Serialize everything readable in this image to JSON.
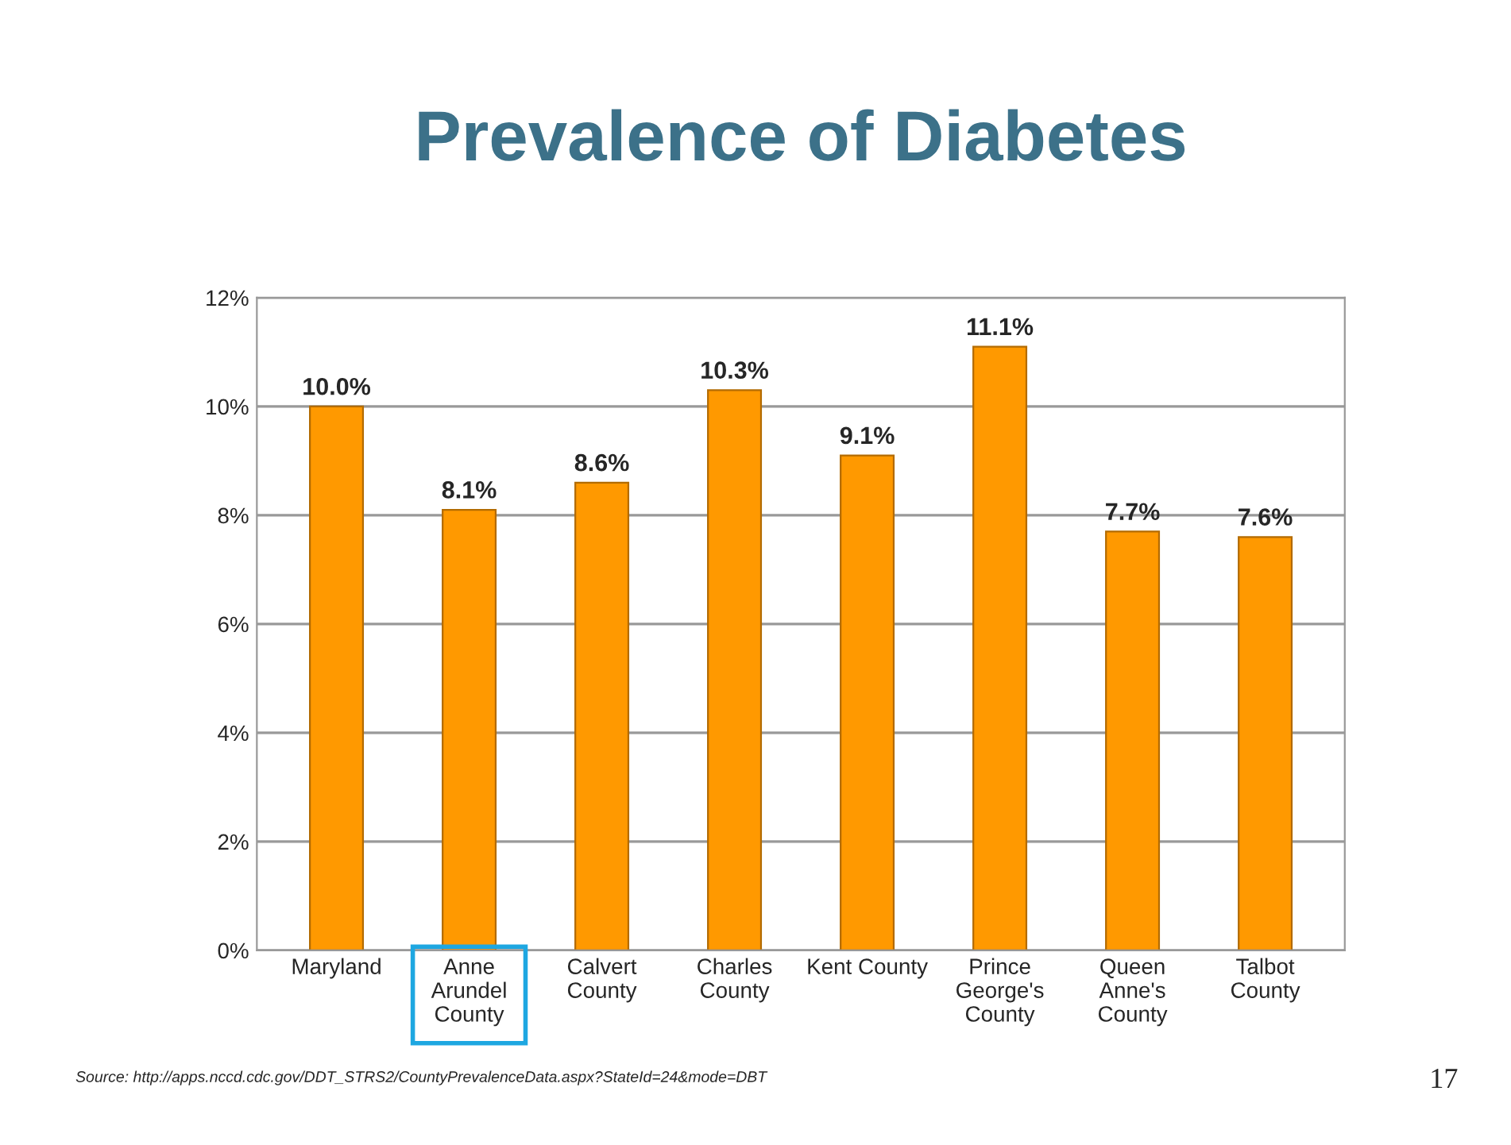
{
  "chart_data": {
    "type": "bar",
    "title": "Prevalence of Diabetes",
    "categories": [
      "Maryland",
      "Anne\nArundel\nCounty",
      "Calvert\nCounty",
      "Charles\nCounty",
      "Kent County",
      "Prince\nGeorge's\nCounty",
      "Queen\nAnne's\nCounty",
      "Talbot\nCounty"
    ],
    "values": [
      10.0,
      8.1,
      8.6,
      10.3,
      9.1,
      11.1,
      7.7,
      7.6
    ],
    "value_labels": [
      "10.0%",
      "8.1%",
      "8.6%",
      "10.3%",
      "9.1%",
      "11.1%",
      "7.7%",
      "7.6%"
    ],
    "color": "#ff9900",
    "ylim": [
      0,
      12
    ],
    "yticks": [
      {
        "value": 0,
        "label": "0%"
      },
      {
        "value": 2,
        "label": "2%"
      },
      {
        "value": 4,
        "label": "4%"
      },
      {
        "value": 6,
        "label": "6%"
      },
      {
        "value": 8,
        "label": "8%"
      },
      {
        "value": 10,
        "label": "10%"
      },
      {
        "value": 12,
        "label": "12%"
      }
    ],
    "grid": "y",
    "legend": false,
    "annotations": [
      "Source: http://apps.nccd.cdc.gov/DDT_STRS2/CountyPrevalenceData.aspx?StateId=24&mode=DBT",
      "17"
    ]
  }
}
